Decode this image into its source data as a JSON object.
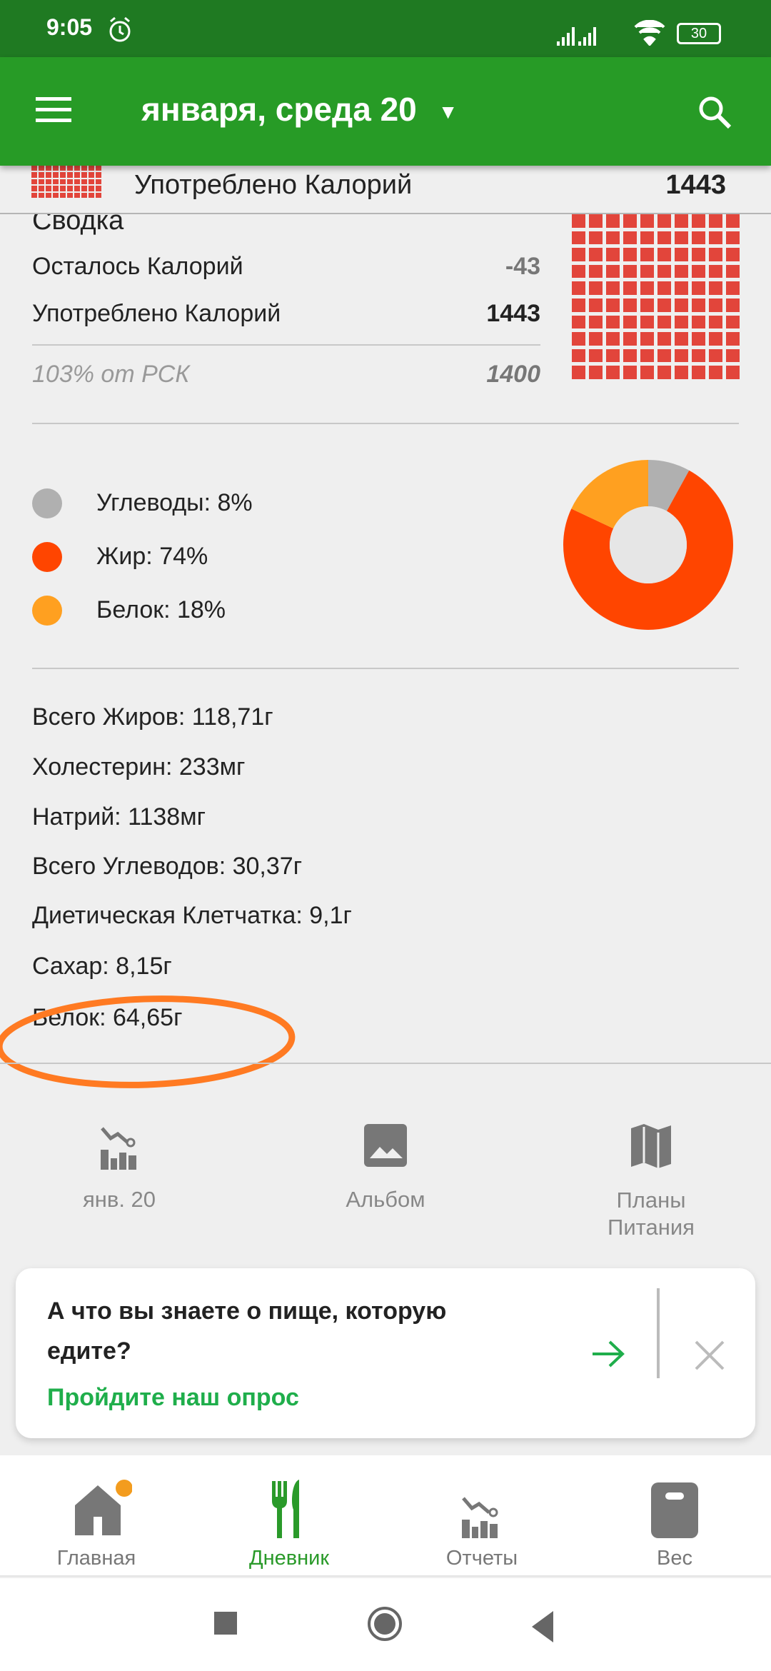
{
  "status_bar": {
    "time": "9:05",
    "battery": "30"
  },
  "app_bar": {
    "title": "января, среда 20"
  },
  "sticky_row": {
    "label": "Употреблено Калорий",
    "value": "1443"
  },
  "summary": {
    "title": "Сводка",
    "remaining_label": "Осталось Калорий",
    "remaining_value": "-43",
    "consumed_label": "Употреблено Калорий",
    "consumed_value": "1443",
    "rdi_label": "103% от РСК",
    "rdi_value": "1400"
  },
  "macros": {
    "items": [
      {
        "label": "Углеводы: 8%",
        "color": "#b0b0b0",
        "percent": 8
      },
      {
        "label": "Жир: 74%",
        "color": "#ff4500",
        "percent": 74
      },
      {
        "label": "Белок: 18%",
        "color": "#ffa020",
        "percent": 18
      }
    ]
  },
  "nutrients": [
    "Всего Жиров: 118,71г",
    "Холестерин: 233мг",
    "Натрий: 1138мг",
    "Всего Углеводов: 30,37г",
    "Диетическая Клетчатка: 9,1г",
    "Сахар: 8,15г",
    "Белок: 64,65г"
  ],
  "shortcuts": [
    {
      "label": "янв. 20",
      "icon": "chart-icon"
    },
    {
      "label": "Альбом",
      "icon": "image-icon"
    },
    {
      "label": "Планы Питания",
      "icon": "map-icon"
    }
  ],
  "survey": {
    "question": "А что вы знаете о пище, которую едите?",
    "link": "Пройдите наш опрос"
  },
  "bottom_nav": [
    {
      "label": "Главная"
    },
    {
      "label": "Дневник",
      "active": true
    },
    {
      "label": "Отчеты"
    },
    {
      "label": "Вес"
    }
  ],
  "colors": {
    "brand": "#279b26",
    "accent_green": "#1fae4b",
    "annotation": "#ff7a22"
  }
}
